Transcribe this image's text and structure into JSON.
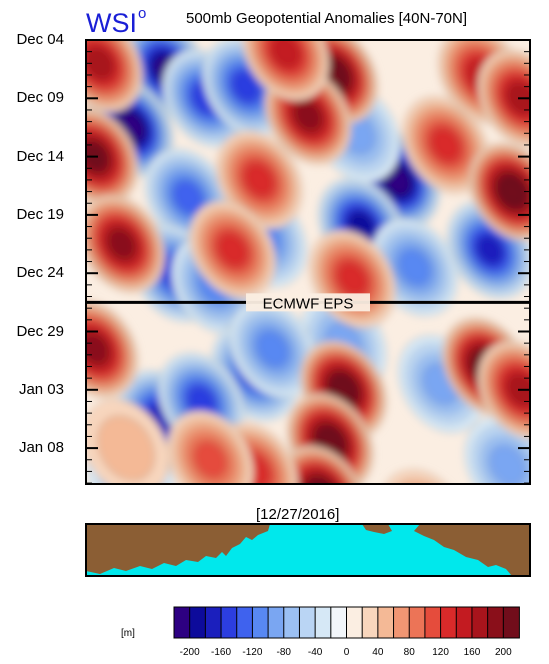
{
  "logo": {
    "text": "WSI",
    "mark": "o"
  },
  "chart_data": {
    "type": "heatmap",
    "title": "500mb Geopotential Anomalies [40N-70N]",
    "ytick_labels": [
      "Dec 04",
      "Dec 09",
      "Dec 14",
      "Dec 19",
      "Dec 24",
      "Dec 29",
      "Jan 03",
      "Jan 08"
    ],
    "forecast_divider_label": "ECMWF EPS",
    "forecast_start_index": 4.5,
    "colorbar": {
      "unit": "[m]",
      "min": -220,
      "max": 220,
      "step": 20,
      "tick_labels": [
        "-200",
        "-160",
        "-120",
        "-80",
        "-40",
        "0",
        "40",
        "80",
        "120",
        "160",
        "200"
      ],
      "colors": [
        "#2d0082",
        "#0d0b9b",
        "#1b1fbd",
        "#2c3ee0",
        "#3f62ee",
        "#5888f2",
        "#7aa6f2",
        "#9bc0f3",
        "#bad5f4",
        "#d6e8f6",
        "#f2f6fa",
        "#fbeee2",
        "#f8d6bd",
        "#f4b996",
        "#f19673",
        "#ec7457",
        "#e54c3c",
        "#d92a2a",
        "#c31b21",
        "#a8141c",
        "#8a0f1a",
        "#710d1b"
      ]
    },
    "anomaly_features": [
      {
        "time_index": 0.5,
        "longitude_frac": 0.18,
        "value": -200
      },
      {
        "time_index": 1.5,
        "longitude_frac": 0.1,
        "value": -220
      },
      {
        "time_index": 1.0,
        "longitude_frac": 0.27,
        "value": -150
      },
      {
        "time_index": 0.8,
        "longitude_frac": 0.36,
        "value": -140
      },
      {
        "time_index": 2.7,
        "longitude_frac": 0.23,
        "value": -130
      },
      {
        "time_index": 4.0,
        "longitude_frac": 0.2,
        "value": -150
      },
      {
        "time_index": 4.2,
        "longitude_frac": 0.29,
        "value": -100
      },
      {
        "time_index": 2.4,
        "longitude_frac": 0.7,
        "value": -220
      },
      {
        "time_index": 3.2,
        "longitude_frac": 0.62,
        "value": -180
      },
      {
        "time_index": 3.6,
        "longitude_frac": 0.91,
        "value": -170
      },
      {
        "time_index": 3.9,
        "longitude_frac": 0.74,
        "value": -110
      },
      {
        "time_index": 3.4,
        "longitude_frac": 0.4,
        "value": -100
      },
      {
        "time_index": 1.6,
        "longitude_frac": 0.61,
        "value": -90
      },
      {
        "time_index": 5.2,
        "longitude_frac": 0.58,
        "value": -80
      },
      {
        "time_index": 5.7,
        "longitude_frac": 0.38,
        "value": -140
      },
      {
        "time_index": 5.3,
        "longitude_frac": 0.42,
        "value": -110
      },
      {
        "time_index": 6.5,
        "longitude_frac": 0.17,
        "value": -160
      },
      {
        "time_index": 6.2,
        "longitude_frac": 0.26,
        "value": -140
      },
      {
        "time_index": 5.9,
        "longitude_frac": 0.8,
        "value": -80
      },
      {
        "time_index": 7.3,
        "longitude_frac": 0.95,
        "value": -90
      },
      {
        "time_index": 7.5,
        "longitude_frac": 0.1,
        "value": -60
      },
      {
        "time_index": 0.4,
        "longitude_frac": 0.03,
        "value": 160
      },
      {
        "time_index": 2.0,
        "longitude_frac": 0.02,
        "value": 200
      },
      {
        "time_index": 3.5,
        "longitude_frac": 0.08,
        "value": 180
      },
      {
        "time_index": 0.6,
        "longitude_frac": 0.56,
        "value": 220
      },
      {
        "time_index": 1.3,
        "longitude_frac": 0.5,
        "value": 180
      },
      {
        "time_index": 0.2,
        "longitude_frac": 0.45,
        "value": 140
      },
      {
        "time_index": 2.4,
        "longitude_frac": 0.39,
        "value": 130
      },
      {
        "time_index": 3.6,
        "longitude_frac": 0.33,
        "value": 130
      },
      {
        "time_index": 1.8,
        "longitude_frac": 0.81,
        "value": 130
      },
      {
        "time_index": 0.6,
        "longitude_frac": 0.89,
        "value": 150
      },
      {
        "time_index": 1.0,
        "longitude_frac": 0.98,
        "value": 170
      },
      {
        "time_index": 2.6,
        "longitude_frac": 0.96,
        "value": 220
      },
      {
        "time_index": 4.1,
        "longitude_frac": 0.6,
        "value": 120
      },
      {
        "time_index": 5.3,
        "longitude_frac": 0.02,
        "value": 180
      },
      {
        "time_index": 6.0,
        "longitude_frac": 0.58,
        "value": 240
      },
      {
        "time_index": 6.9,
        "longitude_frac": 0.55,
        "value": 260
      },
      {
        "time_index": 7.8,
        "longitude_frac": 0.53,
        "value": 230
      },
      {
        "time_index": 5.6,
        "longitude_frac": 0.9,
        "value": 230
      },
      {
        "time_index": 6.0,
        "longitude_frac": 0.98,
        "value": 170
      },
      {
        "time_index": 7.4,
        "longitude_frac": 0.38,
        "value": 130
      },
      {
        "time_index": 7.2,
        "longitude_frac": 0.28,
        "value": 100
      },
      {
        "time_index": 8.2,
        "longitude_frac": 0.76,
        "value": 90
      },
      {
        "time_index": 7.0,
        "longitude_frac": 0.09,
        "value": 40
      }
    ],
    "map_date": "[12/27/2016]"
  },
  "colors": {
    "logo": "#1a1fd6",
    "land": "#8b5e34",
    "ocean": "#00e8ec"
  }
}
